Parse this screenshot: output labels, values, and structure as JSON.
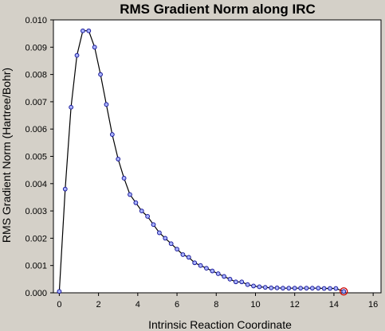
{
  "chart_data": {
    "type": "line",
    "title": "RMS Gradient Norm along IRC",
    "xlabel": "Intrinsic Reaction Coordinate",
    "ylabel": "RMS Gradient Norm (Hartree/Bohr)",
    "xlim": [
      -0.3,
      16.4
    ],
    "ylim": [
      0.0,
      0.01
    ],
    "xticks": [
      "0",
      "2",
      "4",
      "6",
      "8",
      "10",
      "12",
      "14",
      "16"
    ],
    "yticks": [
      "0.000",
      "0.001",
      "0.002",
      "0.003",
      "0.004",
      "0.005",
      "0.006",
      "0.007",
      "0.008",
      "0.009",
      "0.010"
    ],
    "grid": false,
    "colors": {
      "background": "#d4d0c8",
      "plot_area": "#ffffff",
      "line": "#000000",
      "marker_fill": "#aab4ff",
      "marker_edge": "#1a1a99",
      "highlight": "#cc0000"
    },
    "series": [
      {
        "x": [
          0.0,
          0.3,
          0.6,
          0.9,
          1.2,
          1.5,
          1.8,
          2.1,
          2.4,
          2.7,
          3.0,
          3.3,
          3.6,
          3.9,
          4.2,
          4.5,
          4.8,
          5.1,
          5.4,
          5.7,
          6.0,
          6.3,
          6.6,
          6.9,
          7.2,
          7.5,
          7.8,
          8.1,
          8.4,
          8.7,
          9.0,
          9.3,
          9.6,
          9.9,
          10.2,
          10.5,
          10.8,
          11.1,
          11.4,
          11.7,
          12.0,
          12.3,
          12.6,
          12.9,
          13.2,
          13.5,
          13.8,
          14.1,
          14.5
        ],
        "values": [
          5e-05,
          0.0038,
          0.0068,
          0.0087,
          0.0096,
          0.0096,
          0.009,
          0.008,
          0.0069,
          0.0058,
          0.0049,
          0.0042,
          0.0036,
          0.0033,
          0.003,
          0.0028,
          0.0025,
          0.0022,
          0.002,
          0.0018,
          0.0016,
          0.0014,
          0.0013,
          0.0011,
          0.001,
          0.0009,
          0.0008,
          0.0007,
          0.0006,
          0.0005,
          0.0004,
          0.0004,
          0.0003,
          0.00025,
          0.00022,
          0.0002,
          0.00018,
          0.00018,
          0.00017,
          0.00017,
          0.00017,
          0.00017,
          0.00017,
          0.00017,
          0.00017,
          0.00016,
          0.00016,
          0.00016,
          5e-05
        ]
      }
    ],
    "highlighted_point_index": 48
  }
}
